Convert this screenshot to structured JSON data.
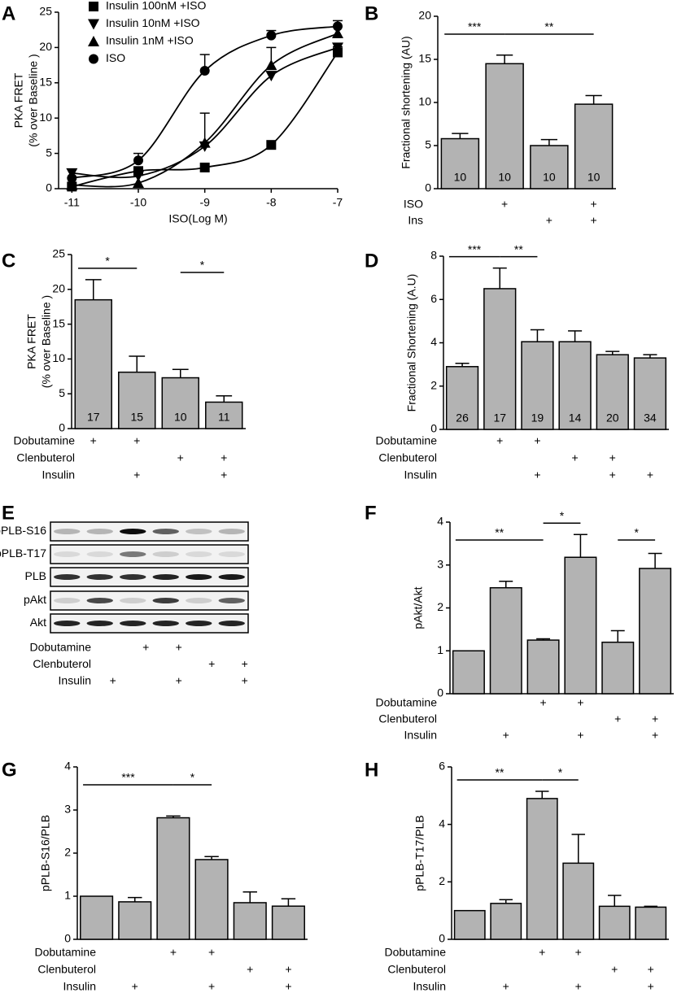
{
  "chart_data": [
    {
      "panel": "A",
      "type": "scatter",
      "xlabel": "ISO(Log M)",
      "ylabel": [
        "PKA FRET",
        "(% over Baseline )"
      ],
      "x": [
        -11,
        -10,
        -9,
        -8,
        -7
      ],
      "xlim": [
        -11.2,
        -7
      ],
      "xticks": [
        -11,
        -10,
        -9,
        -8,
        -7
      ],
      "ylim": [
        0,
        25
      ],
      "yticks": [
        0,
        5,
        10,
        15,
        20,
        25
      ],
      "series": [
        {
          "name": "Insulin 100nM +ISO",
          "marker": "square",
          "color": "#000000",
          "values": [
            0.3,
            2.5,
            3,
            6.2,
            19.3
          ],
          "errors": [
            null,
            null,
            null,
            null,
            0.8
          ]
        },
        {
          "name": "Insulin 10nM +ISO",
          "marker": "triangle-down",
          "color": "#000000",
          "values": [
            2.2,
            1.8,
            6,
            16,
            20
          ],
          "errors": [
            null,
            null,
            4.7,
            null,
            null
          ]
        },
        {
          "name": "Insulin 1nM +ISO",
          "marker": "triangle-up",
          "color": "#000000",
          "values": [
            0.5,
            0.8,
            6.5,
            17.5,
            22
          ],
          "errors": [
            null,
            null,
            null,
            2.5,
            1
          ]
        },
        {
          "name": "ISO",
          "marker": "circle",
          "color": "#000000",
          "values": [
            1.5,
            4,
            16.7,
            21.7,
            23
          ],
          "errors": [
            null,
            1,
            2.3,
            0.7,
            0.8
          ]
        }
      ]
    },
    {
      "panel": "B",
      "type": "bar",
      "color": "#b3b3b3",
      "ylabel": [
        "Fractional shortening (AU)"
      ],
      "values": [
        5.8,
        14.5,
        5,
        9.8
      ],
      "errors": [
        0.6,
        1,
        0.7,
        1
      ],
      "counts": [
        10,
        10,
        10,
        10
      ],
      "ylim": [
        0,
        20
      ],
      "yticks": [
        0,
        5,
        10,
        15,
        20
      ],
      "conditions": [
        {
          "name": "ISO",
          "marks": [
            null,
            "+",
            null,
            "+"
          ]
        },
        {
          "name": "Ins",
          "marks": [
            null,
            null,
            "+",
            "+"
          ]
        }
      ],
      "significance": [
        {
          "label": "***",
          "between": [
            0,
            1
          ]
        },
        {
          "label": "**",
          "between": [
            1,
            3
          ]
        }
      ]
    },
    {
      "panel": "C",
      "type": "bar",
      "color": "#b3b3b3",
      "ylabel": [
        "PKA FRET",
        "(% over Baseline )"
      ],
      "values": [
        18.5,
        8.1,
        7.3,
        3.8
      ],
      "errors": [
        2.9,
        2.3,
        1.2,
        0.9
      ],
      "counts": [
        17,
        15,
        10,
        11
      ],
      "ylim": [
        0,
        25
      ],
      "yticks": [
        0,
        5,
        10,
        15,
        20,
        25
      ],
      "conditions": [
        {
          "name": "Dobutamine",
          "marks": [
            "+",
            "+",
            null,
            null
          ]
        },
        {
          "name": "Clenbuterol",
          "marks": [
            null,
            null,
            "+",
            "+"
          ]
        },
        {
          "name": "Insulin",
          "marks": [
            null,
            "+",
            null,
            "+"
          ]
        }
      ],
      "significance": [
        {
          "label": "*",
          "between": [
            0,
            1
          ]
        },
        {
          "label": "*",
          "between": [
            2,
            3
          ]
        }
      ]
    },
    {
      "panel": "D",
      "type": "bar",
      "color": "#b3b3b3",
      "ylabel": [
        "Fractional Shortening (A.U)"
      ],
      "values": [
        2.9,
        6.5,
        4.05,
        4.05,
        3.45,
        3.3
      ],
      "errors": [
        0.15,
        0.95,
        0.55,
        0.5,
        0.15,
        0.15
      ],
      "counts": [
        26,
        17,
        19,
        14,
        20,
        34
      ],
      "ylim": [
        0,
        8
      ],
      "yticks": [
        0,
        2,
        4,
        6,
        8
      ],
      "conditions": [
        {
          "name": "Dobutamine",
          "marks": [
            null,
            "+",
            "+",
            null,
            null,
            null
          ]
        },
        {
          "name": "Clenbuterol",
          "marks": [
            null,
            null,
            null,
            "+",
            "+",
            null
          ]
        },
        {
          "name": "Insulin",
          "marks": [
            null,
            null,
            "+",
            null,
            "+",
            "+"
          ]
        }
      ],
      "significance": [
        {
          "label": "***",
          "between": [
            0,
            1
          ]
        },
        {
          "label": "**",
          "between": [
            1,
            2
          ]
        }
      ]
    },
    {
      "panel": "F",
      "type": "bar",
      "color": "#b3b3b3",
      "ylabel": [
        "pAkt/Akt"
      ],
      "values": [
        1,
        2.47,
        1.25,
        3.18,
        1.2,
        2.92
      ],
      "errors": [
        null,
        0.15,
        0.03,
        0.53,
        0.27,
        0.35
      ],
      "ylim": [
        0,
        4
      ],
      "yticks": [
        0,
        1,
        2,
        3,
        4
      ],
      "conditions": [
        {
          "name": "Dobutamine",
          "marks": [
            null,
            null,
            "+",
            "+",
            null,
            null
          ]
        },
        {
          "name": "Clenbuterol",
          "marks": [
            null,
            null,
            null,
            null,
            "+",
            "+"
          ]
        },
        {
          "name": "Insulin",
          "marks": [
            null,
            "+",
            null,
            "+",
            null,
            "+"
          ]
        }
      ],
      "significance": [
        {
          "label": "**",
          "between": [
            0,
            2
          ]
        },
        {
          "label": "*",
          "between": [
            2,
            3
          ]
        },
        {
          "label": "*",
          "between": [
            4,
            5
          ]
        }
      ]
    },
    {
      "panel": "G",
      "type": "bar",
      "color": "#b3b3b3",
      "ylabel": [
        "pPLB-S16/PLB"
      ],
      "values": [
        1,
        0.87,
        2.82,
        1.85,
        0.85,
        0.77
      ],
      "errors": [
        null,
        0.1,
        0.04,
        0.07,
        0.25,
        0.17
      ],
      "ylim": [
        0,
        4
      ],
      "yticks": [
        0,
        1,
        2,
        3,
        4
      ],
      "conditions": [
        {
          "name": "Dobutamine",
          "marks": [
            null,
            null,
            "+",
            "+",
            null,
            null
          ]
        },
        {
          "name": "Clenbuterol",
          "marks": [
            null,
            null,
            null,
            null,
            "+",
            "+"
          ]
        },
        {
          "name": "Insulin",
          "marks": [
            null,
            "+",
            null,
            "+",
            null,
            "+"
          ]
        }
      ],
      "significance": [
        {
          "label": "***",
          "between": [
            0,
            2
          ]
        },
        {
          "label": "*",
          "between": [
            2,
            3
          ]
        }
      ]
    },
    {
      "panel": "H",
      "type": "bar",
      "color": "#b3b3b3",
      "ylabel": [
        "pPLB-T17/PLB"
      ],
      "values": [
        1,
        1.25,
        4.9,
        2.65,
        1.15,
        1.12
      ],
      "errors": [
        null,
        0.13,
        0.25,
        1,
        0.38,
        0.03
      ],
      "ylim": [
        0,
        6
      ],
      "yticks": [
        0,
        2,
        4,
        6
      ],
      "conditions": [
        {
          "name": "Dobutamine",
          "marks": [
            null,
            null,
            "+",
            "+",
            null,
            null
          ]
        },
        {
          "name": "Clenbuterol",
          "marks": [
            null,
            null,
            null,
            null,
            "+",
            "+"
          ]
        },
        {
          "name": "Insulin",
          "marks": [
            null,
            "+",
            null,
            "+",
            null,
            "+"
          ]
        }
      ],
      "significance": [
        {
          "label": "**",
          "between": [
            0,
            2
          ]
        },
        {
          "label": "*",
          "between": [
            2,
            3
          ]
        }
      ]
    }
  ],
  "blot": {
    "panel": "E",
    "rows": [
      "pPLB-S16",
      "pPLB-T17",
      "PLB",
      "pAkt",
      "Akt"
    ],
    "conditions": [
      {
        "name": "Dobutamine",
        "marks": [
          null,
          null,
          "+",
          "+",
          null,
          null
        ]
      },
      {
        "name": "Clenbuterol",
        "marks": [
          null,
          null,
          null,
          null,
          "+",
          "+"
        ]
      },
      {
        "name": "Insulin",
        "marks": [
          null,
          "+",
          null,
          "+",
          null,
          "+"
        ]
      }
    ]
  }
}
